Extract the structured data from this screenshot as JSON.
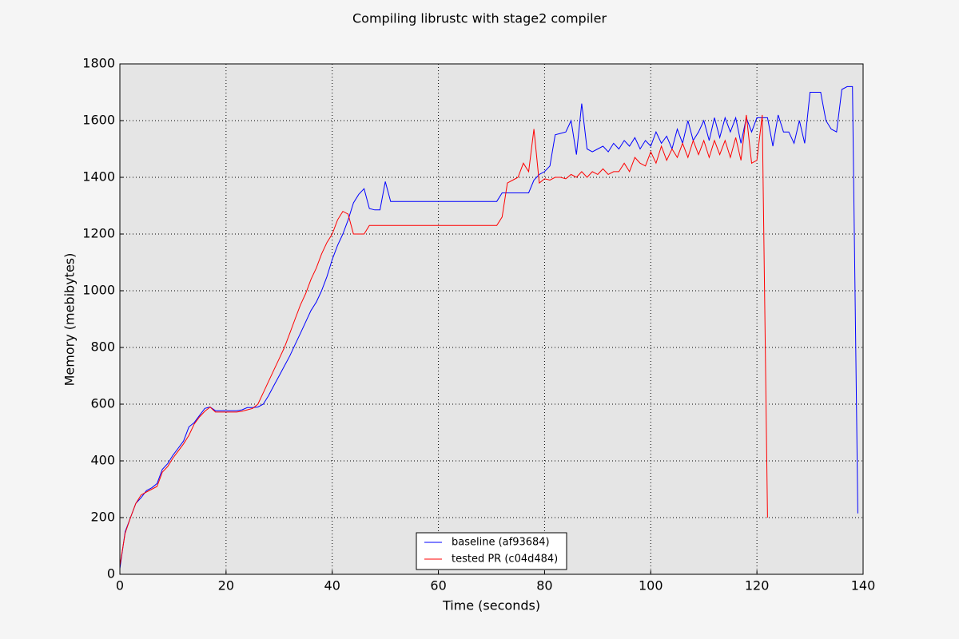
{
  "chart_data": {
    "type": "line",
    "title": "Compiling librustc with stage2 compiler",
    "x_label": "Time (seconds)",
    "y_label": "Memory (mebibytes)",
    "x": [
      0,
      1,
      2,
      3,
      4,
      5,
      6,
      7,
      8,
      9,
      10,
      11,
      12,
      13,
      14,
      15,
      16,
      17,
      18,
      19,
      20,
      21,
      22,
      23,
      24,
      25,
      26,
      27,
      28,
      29,
      30,
      31,
      32,
      33,
      34,
      35,
      36,
      37,
      38,
      39,
      40,
      41,
      42,
      43,
      44,
      45,
      46,
      47,
      48,
      49,
      50,
      51,
      52,
      53,
      54,
      55,
      56,
      57,
      58,
      59,
      60,
      61,
      62,
      63,
      64,
      65,
      66,
      67,
      68,
      69,
      70,
      71,
      72,
      73,
      74,
      75,
      76,
      77,
      78,
      79,
      80,
      81,
      82,
      83,
      84,
      85,
      86,
      87,
      88,
      89,
      90,
      91,
      92,
      93,
      94,
      95,
      96,
      97,
      98,
      99,
      100,
      101,
      102,
      103,
      104,
      105,
      106,
      107,
      108,
      109,
      110,
      111,
      112,
      113,
      114,
      115,
      116,
      117,
      118,
      119,
      120,
      121,
      122,
      123,
      124,
      125,
      126,
      127,
      128,
      129,
      130,
      131,
      132,
      133,
      134,
      135,
      136,
      137,
      138,
      139
    ],
    "series": [
      {
        "name": "baseline (af93684)",
        "color": "#0000ff",
        "values": [
          20,
          150,
          200,
          250,
          270,
          295,
          305,
          320,
          370,
          390,
          420,
          445,
          470,
          520,
          535,
          560,
          585,
          590,
          577,
          577,
          577,
          577,
          577,
          580,
          588,
          588,
          590,
          600,
          630,
          665,
          700,
          735,
          770,
          810,
          850,
          890,
          930,
          960,
          1000,
          1050,
          1110,
          1160,
          1200,
          1250,
          1310,
          1340,
          1360,
          1290,
          1285,
          1285,
          1385,
          1315,
          1315,
          1315,
          1315,
          1315,
          1315,
          1315,
          1315,
          1315,
          1315,
          1315,
          1315,
          1315,
          1315,
          1315,
          1315,
          1315,
          1315,
          1315,
          1315,
          1315,
          1345,
          1345,
          1345,
          1345,
          1345,
          1345,
          1390,
          1410,
          1420,
          1440,
          1550,
          1555,
          1560,
          1600,
          1480,
          1660,
          1500,
          1490,
          1500,
          1510,
          1490,
          1520,
          1500,
          1530,
          1510,
          1540,
          1500,
          1530,
          1510,
          1560,
          1520,
          1545,
          1500,
          1570,
          1520,
          1600,
          1530,
          1560,
          1600,
          1530,
          1610,
          1540,
          1610,
          1560,
          1610,
          1520,
          1610,
          1560,
          1610,
          1610,
          1610,
          1510,
          1620,
          1560,
          1560,
          1520,
          1600,
          1520,
          1700,
          1700,
          1700,
          1600,
          1570,
          1560,
          1710,
          1720,
          1720,
          215
        ]
      },
      {
        "name": "tested PR (c04d484)",
        "color": "#ff0000",
        "values": [
          30,
          145,
          200,
          250,
          280,
          290,
          300,
          310,
          360,
          380,
          410,
          435,
          460,
          490,
          530,
          555,
          575,
          590,
          572,
          572,
          572,
          572,
          572,
          575,
          580,
          585,
          600,
          640,
          680,
          720,
          760,
          800,
          850,
          900,
          950,
          990,
          1040,
          1080,
          1130,
          1170,
          1200,
          1250,
          1280,
          1270,
          1200,
          1200,
          1200,
          1230,
          1230,
          1230,
          1230,
          1230,
          1230,
          1230,
          1230,
          1230,
          1230,
          1230,
          1230,
          1230,
          1230,
          1230,
          1230,
          1230,
          1230,
          1230,
          1230,
          1230,
          1230,
          1230,
          1230,
          1230,
          1260,
          1380,
          1390,
          1400,
          1450,
          1420,
          1570,
          1380,
          1395,
          1390,
          1400,
          1400,
          1395,
          1410,
          1400,
          1420,
          1400,
          1420,
          1410,
          1430,
          1410,
          1420,
          1420,
          1450,
          1420,
          1470,
          1450,
          1440,
          1490,
          1450,
          1510,
          1460,
          1500,
          1470,
          1520,
          1470,
          1530,
          1480,
          1530,
          1470,
          1530,
          1480,
          1530,
          1470,
          1540,
          1460,
          1620,
          1450,
          1460,
          1620,
          200,
          null,
          null,
          null,
          null,
          null,
          null,
          null,
          null,
          null,
          null,
          null,
          null,
          null,
          null,
          null,
          null,
          null
        ]
      }
    ],
    "xlim": [
      0,
      140
    ],
    "xticks": [
      0,
      20,
      40,
      60,
      80,
      100,
      120,
      140
    ],
    "ylim": [
      0,
      1800
    ],
    "yticks": [
      0,
      200,
      400,
      600,
      800,
      1000,
      1200,
      1400,
      1600,
      1800
    ],
    "grid": true,
    "legend": "lower center"
  }
}
